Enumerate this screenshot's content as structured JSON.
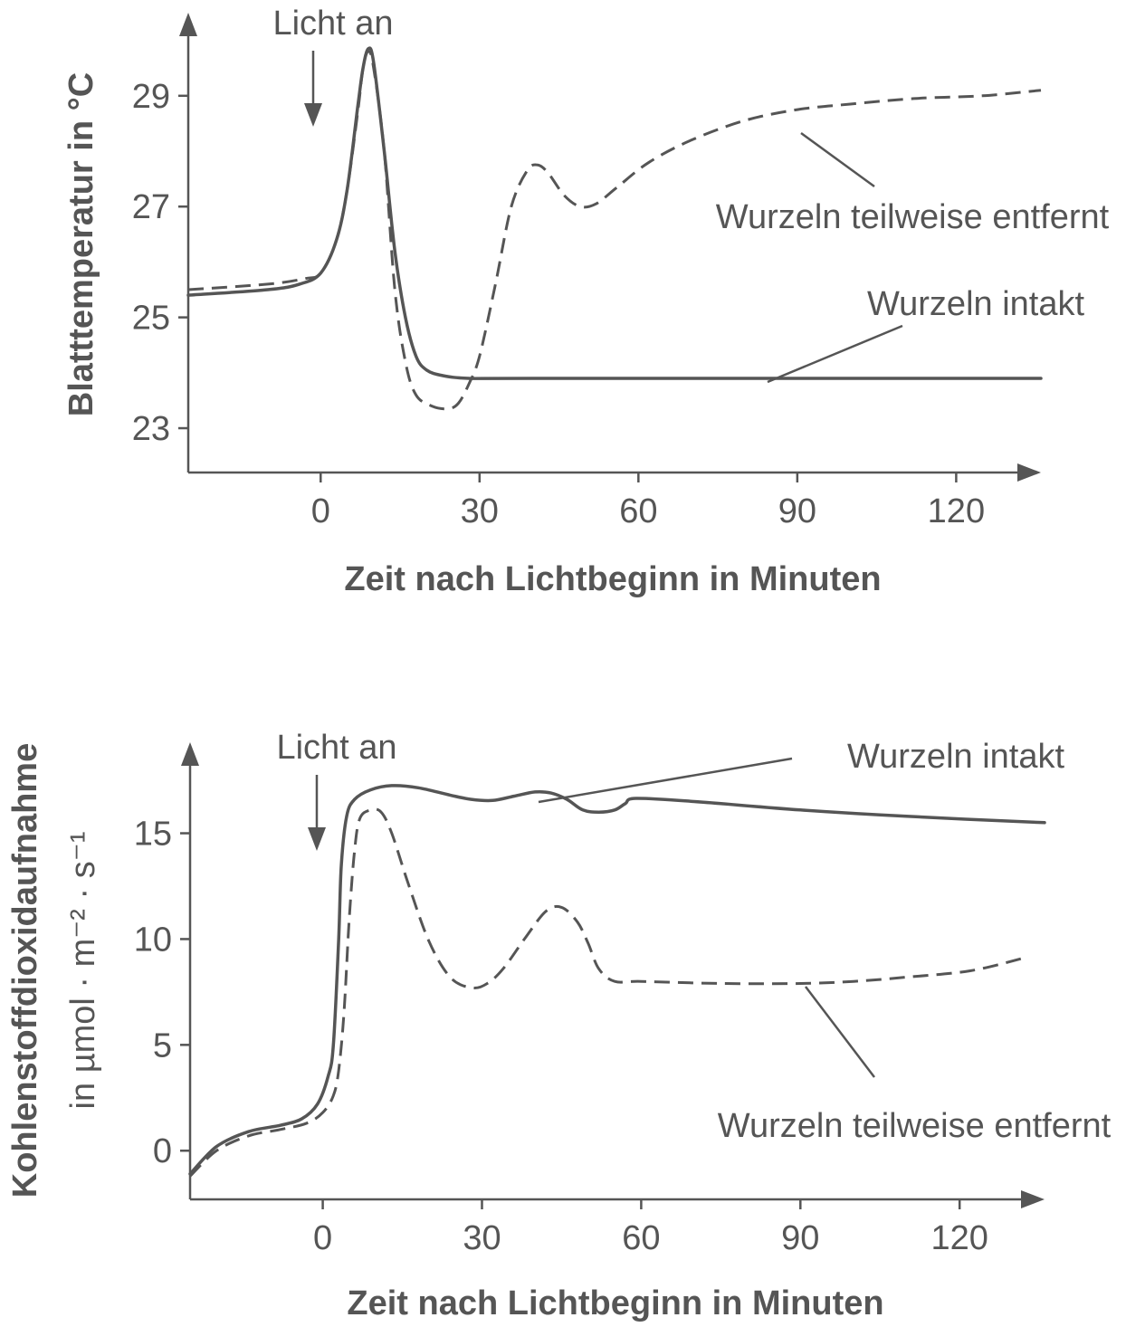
{
  "chart_data": [
    {
      "type": "line",
      "xlabel": "Zeit nach Lichtbeginn in Minuten",
      "ylabel": "Blatttemperatur in °C",
      "x_ticks": [
        0,
        30,
        60,
        90,
        120
      ],
      "y_ticks": [
        23,
        25,
        27,
        29
      ],
      "xlim": [
        -25,
        136
      ],
      "ylim": [
        22.2,
        30.5
      ],
      "annotation": "Licht an",
      "annotation_x": 0,
      "series": [
        {
          "name": "Wurzeln intakt",
          "style": "solid",
          "points": [
            [
              -25,
              25.4
            ],
            [
              -10,
              25.5
            ],
            [
              -4,
              25.6
            ],
            [
              0,
              25.8
            ],
            [
              3,
              26.4
            ],
            [
              5,
              27.3
            ],
            [
              7,
              28.8
            ],
            [
              8,
              29.5
            ],
            [
              9,
              29.85
            ],
            [
              10,
              29.6
            ],
            [
              12,
              28.0
            ],
            [
              14,
              26.2
            ],
            [
              16,
              25.0
            ],
            [
              18,
              24.3
            ],
            [
              20,
              24.05
            ],
            [
              23,
              23.95
            ],
            [
              28,
              23.9
            ],
            [
              40,
              23.9
            ],
            [
              136,
              23.9
            ]
          ]
        },
        {
          "name": "Wurzeln teilweise entfernt",
          "style": "dashed",
          "points": [
            [
              -25,
              25.5
            ],
            [
              -10,
              25.6
            ],
            [
              -3,
              25.7
            ],
            [
              0,
              25.8
            ],
            [
              3,
              26.4
            ],
            [
              5,
              27.3
            ],
            [
              7,
              28.7
            ],
            [
              8,
              29.5
            ],
            [
              9,
              29.8
            ],
            [
              10,
              29.5
            ],
            [
              12,
              28.0
            ],
            [
              14,
              25.5
            ],
            [
              16,
              24.2
            ],
            [
              18,
              23.6
            ],
            [
              21,
              23.4
            ],
            [
              24,
              23.35
            ],
            [
              26,
              23.45
            ],
            [
              28,
              23.8
            ],
            [
              30,
              24.3
            ],
            [
              33,
              25.6
            ],
            [
              36,
              27.0
            ],
            [
              39,
              27.65
            ],
            [
              41,
              27.75
            ],
            [
              43,
              27.6
            ],
            [
              46,
              27.2
            ],
            [
              49,
              27.0
            ],
            [
              52,
              27.05
            ],
            [
              56,
              27.35
            ],
            [
              62,
              27.8
            ],
            [
              70,
              28.2
            ],
            [
              80,
              28.55
            ],
            [
              90,
              28.75
            ],
            [
              100,
              28.85
            ],
            [
              112,
              28.95
            ],
            [
              125,
              29.0
            ],
            [
              136,
              29.1
            ]
          ]
        }
      ],
      "labels": [
        {
          "text": "Wurzeln teilweise entfernt",
          "series": "Wurzeln teilweise entfernt"
        },
        {
          "text": "Wurzeln intakt",
          "series": "Wurzeln intakt"
        }
      ]
    },
    {
      "type": "line",
      "xlabel": "Zeit nach Lichtbeginn in Minuten",
      "ylabel_line1": "Kohlenstoffdioxidaufnahme",
      "ylabel_line2": "in µmol · m⁻² · s⁻¹",
      "x_ticks": [
        0,
        30,
        60,
        90,
        120
      ],
      "y_ticks": [
        0,
        5,
        10,
        15
      ],
      "xlim": [
        -25,
        136
      ],
      "ylim": [
        -2.3,
        19.3
      ],
      "annotation": "Licht an",
      "annotation_x": 0,
      "series": [
        {
          "name": "Wurzeln intakt",
          "style": "solid",
          "points": [
            [
              -25,
              -1.1
            ],
            [
              -20,
              0.2
            ],
            [
              -14,
              0.9
            ],
            [
              -8,
              1.2
            ],
            [
              -4,
              1.5
            ],
            [
              -1,
              2.2
            ],
            [
              1,
              3.5
            ],
            [
              2,
              5.0
            ],
            [
              3,
              10.0
            ],
            [
              3.5,
              13.5
            ],
            [
              4.5,
              15.8
            ],
            [
              6,
              16.6
            ],
            [
              9,
              17.05
            ],
            [
              13,
              17.25
            ],
            [
              18,
              17.15
            ],
            [
              24,
              16.8
            ],
            [
              28,
              16.6
            ],
            [
              32,
              16.55
            ],
            [
              36,
              16.75
            ],
            [
              40,
              16.95
            ],
            [
              43,
              16.9
            ],
            [
              46,
              16.6
            ],
            [
              49,
              16.1
            ],
            [
              52,
              16.0
            ],
            [
              55,
              16.1
            ],
            [
              57,
              16.4
            ],
            [
              59,
              16.65
            ],
            [
              70,
              16.5
            ],
            [
              90,
              16.1
            ],
            [
              110,
              15.8
            ],
            [
              136,
              15.5
            ]
          ]
        },
        {
          "name": "Wurzeln teilweise entfernt",
          "style": "dashed",
          "points": [
            [
              -25,
              -1.2
            ],
            [
              -20,
              0.0
            ],
            [
              -14,
              0.7
            ],
            [
              -8,
              1.0
            ],
            [
              -3,
              1.3
            ],
            [
              0,
              1.8
            ],
            [
              2,
              2.6
            ],
            [
              3,
              3.8
            ],
            [
              4,
              6.5
            ],
            [
              5,
              11.0
            ],
            [
              6,
              14.2
            ],
            [
              7,
              15.7
            ],
            [
              9,
              16.1
            ],
            [
              11,
              16.0
            ],
            [
              13,
              15.0
            ],
            [
              16,
              12.7
            ],
            [
              20,
              9.9
            ],
            [
              24,
              8.2
            ],
            [
              28,
              7.7
            ],
            [
              31,
              7.9
            ],
            [
              34,
              8.6
            ],
            [
              38,
              10.0
            ],
            [
              42,
              11.3
            ],
            [
              45,
              11.5
            ],
            [
              48,
              10.8
            ],
            [
              50,
              9.8
            ],
            [
              52,
              8.6
            ],
            [
              55,
              8.0
            ],
            [
              60,
              8.0
            ],
            [
              75,
              7.9
            ],
            [
              90,
              7.9
            ],
            [
              100,
              8.0
            ],
            [
              110,
              8.2
            ],
            [
              122,
              8.5
            ],
            [
              132,
              9.1
            ]
          ]
        }
      ],
      "labels": [
        {
          "text": "Wurzeln intakt",
          "series": "Wurzeln intakt"
        },
        {
          "text": "Wurzeln teilweise entfernt",
          "series": "Wurzeln teilweise entfernt"
        }
      ]
    }
  ]
}
